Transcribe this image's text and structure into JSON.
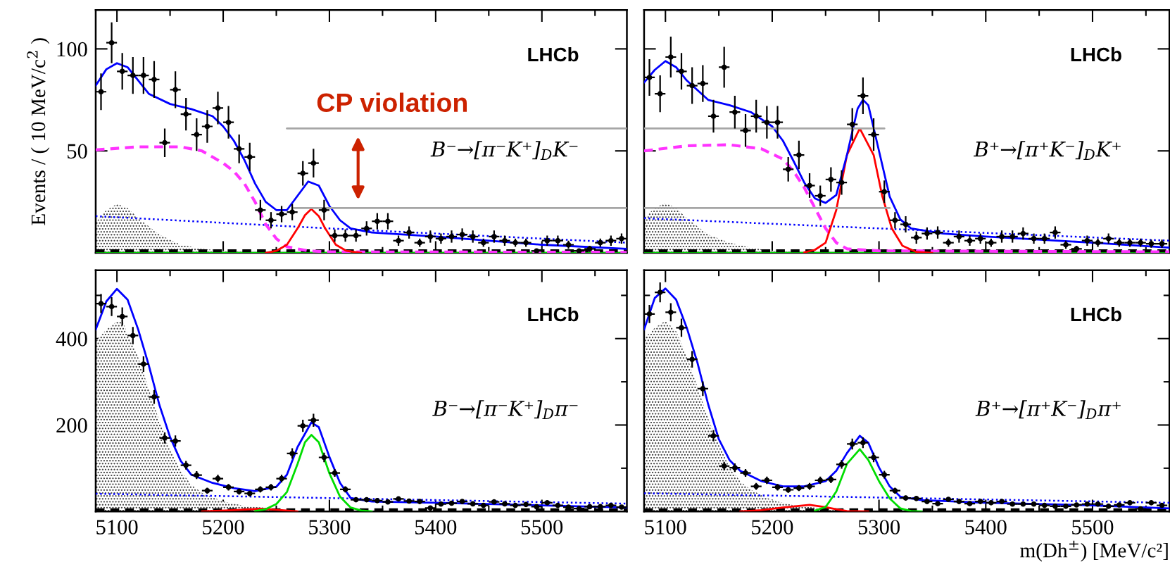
{
  "chart_data": [
    {
      "type": "scatter",
      "ylabel": "Events / ( 10 MeV/c$^{2}$ )",
      "xlim": [
        5080,
        5580
      ],
      "ylim": [
        0,
        119
      ],
      "tick_labels": "y",
      "xticks": [
        5100,
        {
          "value": 5150,
          "label": null
        },
        5200,
        {
          "value": 5250,
          "label": null
        },
        5300,
        {
          "value": 5350,
          "label": null
        },
        5400,
        {
          "value": 5450,
          "label": null
        },
        5500,
        {
          "value": 5550,
          "label": null
        }
      ],
      "yticks": [
        50,
        100
      ],
      "annotations": [
        "LHCb",
        "B⁻→[π⁻K⁺]$_{D}$K⁻",
        {
          "text": "CP violation",
          "x": 5327,
          "y": 61
        }
      ],
      "series": [
        {
          "type": "area",
          "color": "#333333",
          "x": [
            5080,
            5090,
            5100,
            5110,
            5120,
            5140,
            5160,
            5180,
            5200,
            5240
          ],
          "values": [
            15,
            21,
            24,
            22,
            17,
            9,
            4,
            2,
            1,
            0
          ]
        },
        {
          "type": "line",
          "color": "#00dd00",
          "line_style": "solid",
          "x": [
            5080,
            5580
          ],
          "values": [
            0,
            0
          ]
        },
        {
          "type": "line",
          "color": "#000000",
          "line_style": "dashed",
          "x": [
            5080,
            5580
          ],
          "values": [
            1,
            1
          ]
        },
        {
          "type": "line",
          "color": "#0000ff",
          "line_style": "dotted",
          "x": [
            5080,
            5300,
            5580
          ],
          "values": [
            18,
            12,
            5
          ]
        },
        {
          "type": "line",
          "color": "#ff33ff",
          "line_style": "dashed",
          "x": [
            5080,
            5120,
            5160,
            5180,
            5200,
            5210,
            5220,
            5230,
            5240,
            5250,
            5260,
            5280,
            5300,
            5580
          ],
          "values": [
            50.5,
            52,
            52,
            50,
            44,
            40,
            34,
            25,
            14,
            7,
            3,
            1,
            0.5,
            0.3
          ]
        },
        {
          "type": "line",
          "color": "#ff0000",
          "line_style": "solid",
          "x": [
            5240,
            5250,
            5260,
            5270,
            5277,
            5283,
            5290,
            5296,
            5306,
            5316,
            5330
          ],
          "values": [
            0,
            1,
            4,
            12,
            18.5,
            21.5,
            18,
            12,
            4,
            1,
            0
          ]
        },
        {
          "type": "line",
          "color": "#0000ff",
          "line_style": "solid",
          "x": [
            5080,
            5090,
            5100,
            5110,
            5130,
            5150,
            5170,
            5190,
            5200,
            5210,
            5220,
            5230,
            5240,
            5250,
            5260,
            5270,
            5280,
            5290,
            5300,
            5310,
            5320,
            5340,
            5400,
            5500,
            5580
          ],
          "values": [
            82,
            90,
            93,
            91,
            78,
            73,
            70.5,
            67,
            62,
            55,
            45.5,
            34,
            25,
            21,
            21,
            28,
            35,
            33,
            23,
            16,
            12,
            10,
            8,
            4,
            2
          ]
        },
        {
          "type": "scatter",
          "color": "#000000",
          "marker": "circle",
          "x": [
            5085,
            5095,
            5105,
            5115,
            5125,
            5135,
            5145,
            5155,
            5165,
            5175,
            5185,
            5195,
            5205,
            5215,
            5225,
            5235,
            5245,
            5255,
            5265,
            5275,
            5285,
            5295,
            5305,
            5315,
            5325,
            5335,
            5345,
            5355,
            5365,
            5375,
            5385,
            5395,
            5405,
            5415,
            5425,
            5435,
            5445,
            5455,
            5465,
            5475,
            5485,
            5495,
            5505,
            5515,
            5525,
            5535,
            5545,
            5555,
            5565,
            5575
          ],
          "values": [
            79,
            103,
            89,
            87,
            87,
            85,
            54,
            80,
            68,
            58,
            62,
            71,
            64,
            51,
            47,
            21,
            16,
            19,
            20,
            39,
            44,
            21,
            8.5,
            8.5,
            8.5,
            12,
            15.5,
            15.5,
            6,
            10,
            5,
            8,
            7,
            8,
            9,
            8,
            5,
            8,
            6,
            5,
            5,
            1,
            6,
            6,
            4,
            1,
            2,
            5,
            6,
            7
          ],
          "errors": [
            9,
            10,
            9,
            9,
            9,
            9,
            7,
            9,
            8,
            8,
            8,
            8,
            8,
            7,
            7,
            5,
            4,
            4,
            4,
            6,
            7,
            5,
            3,
            3,
            3,
            3.5,
            4,
            4,
            2.5,
            3,
            2,
            3,
            2.5,
            3,
            3,
            3,
            2,
            3,
            2.5,
            2,
            2,
            1,
            2.5,
            2.5,
            2,
            1,
            1.5,
            2,
            2.5,
            2.5
          ],
          "xerrors": [
            5,
            5,
            5,
            5,
            5,
            5,
            5,
            5,
            5,
            5,
            5,
            5,
            5,
            5,
            5,
            5,
            5,
            5,
            5,
            5,
            5,
            5,
            5,
            5,
            5,
            5,
            5,
            5,
            5,
            5,
            5,
            5,
            5,
            5,
            5,
            5,
            5,
            5,
            5,
            5,
            5,
            5,
            5,
            5,
            5,
            5,
            5,
            5,
            5,
            5
          ]
        },
        {
          "type": "line",
          "color": "#a6a6a6",
          "line_style": "solid",
          "x": [
            5260,
            5580
          ],
          "values": [
            61,
            61
          ]
        },
        {
          "type": "line",
          "color": "#a6a6a6",
          "line_style": "solid",
          "x": [
            5265,
            5580
          ],
          "values": [
            22,
            22
          ]
        }
      ]
    },
    {
      "type": "scatter",
      "xlim": [
        5080,
        5572
      ],
      "ylim": [
        0,
        119
      ],
      "tick_labels": false,
      "xticks": [
        5100,
        {
          "value": 5150,
          "label": null
        },
        5200,
        {
          "value": 5250,
          "label": null
        },
        5300,
        {
          "value": 5350,
          "label": null
        },
        5400,
        {
          "value": 5450,
          "label": null
        },
        5500,
        {
          "value": 5550,
          "label": null
        }
      ],
      "yticks": [
        50,
        100
      ],
      "annotations": [
        "LHCb",
        "B⁺→[π⁺K⁻]$_{D}$K⁺"
      ],
      "series": [
        {
          "type": "area",
          "color": "#333333",
          "x": [
            5080,
            5090,
            5100,
            5110,
            5120,
            5140,
            5160,
            5180,
            5200,
            5240
          ],
          "values": [
            17,
            22,
            24.5,
            22,
            17,
            9,
            5,
            2.5,
            1,
            0
          ]
        },
        {
          "type": "line",
          "color": "#00dd00",
          "line_style": "solid",
          "x": [
            5080,
            5572
          ],
          "values": [
            0,
            0
          ]
        },
        {
          "type": "line",
          "color": "#000000",
          "line_style": "dashed",
          "x": [
            5080,
            5572
          ],
          "values": [
            1,
            1
          ]
        },
        {
          "type": "line",
          "color": "#0000ff",
          "line_style": "dotted",
          "x": [
            5080,
            5300,
            5572
          ],
          "values": [
            17,
            12,
            6
          ]
        },
        {
          "type": "line",
          "color": "#ff33ff",
          "line_style": "dashed",
          "x": [
            5080,
            5120,
            5160,
            5190,
            5210,
            5220,
            5230,
            5240,
            5250,
            5260,
            5270,
            5300,
            5572
          ],
          "values": [
            50,
            52.5,
            53,
            51,
            46,
            40,
            32,
            22,
            12,
            5,
            2,
            1,
            0.5
          ]
        },
        {
          "type": "line",
          "color": "#ff0000",
          "line_style": "solid",
          "x": [
            5230,
            5240,
            5250,
            5260,
            5270,
            5282,
            5295,
            5303,
            5312,
            5322,
            5335,
            5350
          ],
          "values": [
            0.3,
            1.5,
            5,
            21,
            48,
            61,
            48,
            28,
            12,
            3.5,
            0.5,
            0
          ]
        },
        {
          "type": "line",
          "color": "#0000ff",
          "line_style": "solid",
          "x": [
            5080,
            5090,
            5100,
            5110,
            5120,
            5140,
            5160,
            5180,
            5200,
            5210,
            5220,
            5230,
            5240,
            5250,
            5260,
            5270,
            5280,
            5285,
            5290,
            5300,
            5310,
            5320,
            5330,
            5360,
            5400,
            5500,
            5572
          ],
          "values": [
            83.5,
            89.7,
            94,
            91,
            84.5,
            75,
            72.4,
            69,
            62,
            55,
            45,
            34.5,
            26.7,
            24.5,
            28.4,
            48,
            70.7,
            75,
            72.4,
            50,
            27.6,
            16.4,
            12,
            9.5,
            8,
            5,
            2.6
          ]
        },
        {
          "type": "scatter",
          "color": "#000000",
          "marker": "circle",
          "x": [
            5085,
            5095,
            5105,
            5115,
            5125,
            5135,
            5145,
            5155,
            5165,
            5175,
            5185,
            5195,
            5205,
            5215,
            5225,
            5235,
            5245,
            5255,
            5265,
            5275,
            5285,
            5295,
            5305,
            5315,
            5325,
            5335,
            5345,
            5355,
            5365,
            5375,
            5385,
            5395,
            5405,
            5415,
            5425,
            5435,
            5445,
            5455,
            5465,
            5475,
            5485,
            5495,
            5505,
            5515,
            5525,
            5535,
            5545,
            5555,
            5565
          ],
          "values": [
            86,
            78,
            96,
            89,
            82,
            83,
            67,
            91,
            69,
            60,
            67,
            64,
            64,
            41,
            48,
            33,
            28,
            36,
            34.5,
            63,
            77,
            58,
            30,
            16,
            14,
            7.5,
            9.5,
            10,
            5,
            8,
            6,
            7,
            5,
            8,
            8,
            9.5,
            7,
            7,
            10,
            4,
            2,
            6,
            5,
            7,
            5,
            5,
            5,
            4.5,
            4.5
          ],
          "errors": [
            9,
            9,
            10,
            9,
            9,
            9,
            8,
            10,
            8,
            8,
            8,
            8,
            8,
            6,
            7,
            6,
            5,
            6,
            6,
            8,
            9,
            8,
            5.5,
            4,
            4,
            3,
            3,
            3,
            2,
            3,
            2.5,
            2.5,
            2,
            3,
            3,
            3,
            2.5,
            2.5,
            3,
            2,
            1.5,
            2.5,
            2,
            2.5,
            2,
            2,
            2,
            2,
            2
          ],
          "xerrors": [
            5,
            5,
            5,
            5,
            5,
            5,
            5,
            5,
            5,
            5,
            5,
            5,
            5,
            5,
            5,
            5,
            5,
            5,
            5,
            5,
            5,
            5,
            5,
            5,
            5,
            5,
            5,
            5,
            5,
            5,
            5,
            5,
            5,
            5,
            5,
            5,
            5,
            5,
            5,
            5,
            5,
            5,
            5,
            5,
            5,
            5,
            5,
            5,
            5
          ]
        },
        {
          "type": "line",
          "color": "#a6a6a6",
          "line_style": "solid",
          "x": [
            5080,
            5305
          ],
          "values": [
            61,
            61
          ]
        },
        {
          "type": "line",
          "color": "#a6a6a6",
          "line_style": "solid",
          "x": [
            5080,
            5310
          ],
          "values": [
            22,
            22
          ]
        }
      ]
    },
    {
      "type": "scatter",
      "xlim": [
        5080,
        5580
      ],
      "ylim": [
        0,
        558
      ],
      "xticks": [
        5100,
        {
          "value": 5150,
          "label": null
        },
        5200,
        {
          "value": 5250,
          "label": null
        },
        5300,
        {
          "value": 5350,
          "label": null
        },
        5400,
        {
          "value": 5450,
          "label": null
        },
        5500,
        {
          "value": 5550,
          "label": null
        }
      ],
      "yticks": [
        {
          "value": 100,
          "label": null
        },
        200,
        {
          "value": 300,
          "label": null
        },
        400,
        {
          "value": 500,
          "label": null
        }
      ],
      "annotations": [
        "LHCb",
        "B⁻→[π⁻K⁺]$_{D}$π⁻"
      ],
      "series": [
        {
          "type": "area",
          "color": "#333333",
          "x": [
            5080,
            5090,
            5100,
            5105,
            5110,
            5120,
            5130,
            5140,
            5150,
            5160,
            5170,
            5180,
            5200,
            5220,
            5250,
            5280
          ],
          "values": [
            394,
            421,
            440,
            441,
            412,
            357,
            283,
            209,
            145,
            94,
            62,
            43,
            23,
            13,
            6,
            0
          ]
        },
        {
          "type": "line",
          "color": "#000000",
          "line_style": "dashed",
          "x": [
            5080,
            5580
          ],
          "values": [
            4,
            4
          ]
        },
        {
          "type": "line",
          "color": "#ff0000",
          "line_style": "solid",
          "x": [
            5180,
            5210,
            5235,
            5255,
            5270
          ],
          "values": [
            0,
            3,
            6,
            3,
            0
          ]
        },
        {
          "type": "line",
          "color": "#0000ff",
          "line_style": "dotted",
          "x": [
            5080,
            5580
          ],
          "values": [
            41,
            18
          ]
        },
        {
          "type": "line",
          "color": "#00dd00",
          "line_style": "solid",
          "x": [
            5230,
            5240,
            5250,
            5260,
            5270,
            5277,
            5283,
            5290,
            5300,
            5310,
            5320,
            5330,
            5340
          ],
          "values": [
            1,
            5,
            17,
            45,
            110,
            160,
            177,
            160,
            88,
            34,
            9,
            2,
            0
          ]
        },
        {
          "type": "line",
          "color": "#0000ff",
          "line_style": "solid",
          "x": [
            5080,
            5090,
            5100,
            5110,
            5120,
            5130,
            5140,
            5150,
            5160,
            5170,
            5190,
            5210,
            5230,
            5250,
            5260,
            5270,
            5283,
            5290,
            5300,
            5310,
            5320,
            5340,
            5400,
            5500,
            5580
          ],
          "values": [
            421,
            486,
            515,
            490,
            421,
            338,
            246,
            172,
            117,
            85,
            66,
            54,
            47,
            57,
            85,
            149,
            206,
            195,
            126,
            66,
            31,
            23,
            20,
            14,
            9
          ]
        },
        {
          "type": "scatter",
          "color": "#000000",
          "marker": "circle",
          "x": [
            5085,
            5095,
            5105,
            5115,
            5125,
            5135,
            5145,
            5155,
            5165,
            5175,
            5185,
            5195,
            5205,
            5215,
            5225,
            5235,
            5245,
            5255,
            5265,
            5275,
            5285,
            5295,
            5305,
            5315,
            5325,
            5335,
            5345,
            5355,
            5365,
            5375,
            5385,
            5395,
            5405,
            5415,
            5425,
            5435,
            5445,
            5455,
            5465,
            5475,
            5485,
            5495,
            5505,
            5515,
            5525,
            5535,
            5545,
            5555,
            5565,
            5575
          ],
          "values": [
            481,
            474,
            451,
            407,
            341,
            265,
            170,
            163,
            107,
            84,
            48,
            76,
            56,
            46,
            41.5,
            51,
            56,
            76,
            134,
            198,
            211,
            125,
            89,
            51,
            27,
            27,
            25,
            22,
            29,
            24,
            23,
            8,
            17,
            19,
            23,
            17.5,
            14,
            22,
            17.5,
            14,
            16,
            11,
            20,
            14,
            10,
            6.5,
            11,
            11,
            14,
            10
          ],
          "errors": [
            22,
            22,
            21,
            20,
            18,
            16,
            13,
            13,
            10,
            9,
            7,
            9,
            7.5,
            7,
            6.5,
            7,
            7.5,
            9,
            12,
            14,
            15,
            11,
            9,
            7,
            5,
            5,
            5,
            5,
            5,
            5,
            5,
            3,
            4,
            4,
            5,
            4,
            4,
            5,
            4,
            4,
            4,
            3,
            4.5,
            4,
            3,
            2.5,
            3,
            3,
            4,
            3
          ],
          "xerrors": [
            5,
            5,
            5,
            5,
            5,
            5,
            5,
            5,
            5,
            5,
            5,
            5,
            5,
            5,
            5,
            5,
            5,
            5,
            5,
            5,
            5,
            5,
            5,
            5,
            5,
            5,
            5,
            5,
            5,
            5,
            5,
            5,
            5,
            5,
            5,
            5,
            5,
            5,
            5,
            5,
            5,
            5,
            5,
            5,
            5,
            5,
            5,
            5,
            5,
            5
          ]
        }
      ]
    },
    {
      "type": "scatter",
      "xlabel": "m(Dh$^{±}$) [MeV/c²]",
      "xlim": [
        5080,
        5572
      ],
      "ylim": [
        0,
        558
      ],
      "tick_labels": "x",
      "xticks": [
        5100,
        {
          "value": 5150,
          "label": null
        },
        5200,
        {
          "value": 5250,
          "label": null
        },
        5300,
        {
          "value": 5350,
          "label": null
        },
        5400,
        {
          "value": 5450,
          "label": null
        },
        5500,
        {
          "value": 5550,
          "label": null
        }
      ],
      "yticks": [
        {
          "value": 100,
          "label": null
        },
        200,
        {
          "value": 300,
          "label": null
        },
        400,
        {
          "value": 500,
          "label": null
        }
      ],
      "annotations": [
        "LHCb",
        "B⁺→[π⁺K⁻]$_{D}$π⁺"
      ],
      "series": [
        {
          "type": "area",
          "color": "#333333",
          "x": [
            5080,
            5090,
            5100,
            5110,
            5120,
            5130,
            5140,
            5150,
            5160,
            5170,
            5180,
            5200,
            5220,
            5250,
            5280
          ],
          "values": [
            400,
            425,
            441,
            417,
            360,
            288,
            215,
            155,
            102,
            70,
            50,
            26,
            14,
            6,
            0
          ]
        },
        {
          "type": "line",
          "color": "#000000",
          "line_style": "dashed",
          "x": [
            5080,
            5572
          ],
          "values": [
            4,
            4
          ]
        },
        {
          "type": "line",
          "color": "#ff0000",
          "line_style": "solid",
          "x": [
            5170,
            5190,
            5210,
            5235,
            5250,
            5260,
            5270,
            5290
          ],
          "values": [
            0,
            3,
            9,
            15,
            10,
            5,
            1,
            0
          ]
        },
        {
          "type": "line",
          "color": "#0000ff",
          "line_style": "dotted",
          "x": [
            5080,
            5572
          ],
          "values": [
            42,
            20
          ]
        },
        {
          "type": "line",
          "color": "#00dd00",
          "line_style": "solid",
          "x": [
            5240,
            5250,
            5260,
            5270,
            5282,
            5290,
            5300,
            5310,
            5320,
            5330,
            5340
          ],
          "values": [
            2,
            10,
            46,
            110,
            144,
            119,
            70,
            30,
            7,
            1,
            0
          ]
        },
        {
          "type": "line",
          "color": "#0000ff",
          "line_style": "solid",
          "x": [
            5080,
            5090,
            5100,
            5110,
            5120,
            5130,
            5140,
            5150,
            5160,
            5170,
            5190,
            5210,
            5230,
            5250,
            5260,
            5270,
            5282,
            5290,
            5300,
            5310,
            5320,
            5340,
            5400,
            5500,
            5572
          ],
          "values": [
            421,
            494,
            516,
            490,
            425,
            344,
            248,
            167,
            119,
            94,
            70,
            58,
            58,
            70,
            94,
            135,
            175,
            159,
            102,
            58,
            34,
            26,
            20,
            14,
            7
          ]
        },
        {
          "type": "scatter",
          "color": "#000000",
          "marker": "circle",
          "x": [
            5085,
            5095,
            5105,
            5115,
            5125,
            5135,
            5145,
            5155,
            5165,
            5175,
            5185,
            5195,
            5205,
            5215,
            5225,
            5235,
            5245,
            5255,
            5265,
            5275,
            5285,
            5295,
            5305,
            5315,
            5325,
            5335,
            5345,
            5355,
            5365,
            5375,
            5385,
            5395,
            5405,
            5415,
            5425,
            5435,
            5445,
            5455,
            5465,
            5475,
            5485,
            5495,
            5505,
            5515,
            5525,
            5535,
            5545,
            5555,
            5565
          ],
          "values": [
            457,
            507,
            461,
            425,
            352,
            284,
            175,
            105,
            101,
            89,
            58,
            72,
            56,
            50,
            54,
            58,
            72,
            74,
            109,
            156,
            159,
            125,
            85,
            48,
            31,
            30,
            23,
            18,
            28,
            23,
            18,
            23,
            20,
            23,
            17,
            17,
            17,
            14,
            12,
            12,
            15,
            17,
            17,
            12,
            15,
            20,
            6,
            20,
            14
          ],
          "errors": [
            21,
            23,
            21,
            21,
            19,
            17,
            13,
            10,
            10,
            9,
            8,
            8.5,
            7.5,
            7,
            7,
            8,
            8.5,
            8.5,
            10,
            12.5,
            12.5,
            11,
            9,
            7,
            5.5,
            5.5,
            5,
            4,
            5,
            5,
            4,
            5,
            4.5,
            5,
            4,
            4,
            4,
            4,
            3.5,
            3.5,
            4,
            4,
            4,
            3.5,
            4,
            4.5,
            2.5,
            4.5,
            4
          ],
          "xerrors": [
            5,
            5,
            5,
            5,
            5,
            5,
            5,
            5,
            5,
            5,
            5,
            5,
            5,
            5,
            5,
            5,
            5,
            5,
            5,
            5,
            5,
            5,
            5,
            5,
            5,
            5,
            5,
            5,
            5,
            5,
            5,
            5,
            5,
            5,
            5,
            5,
            5,
            5,
            5,
            5,
            5,
            5,
            5,
            5,
            5,
            5,
            5,
            5,
            5
          ]
        }
      ]
    }
  ]
}
